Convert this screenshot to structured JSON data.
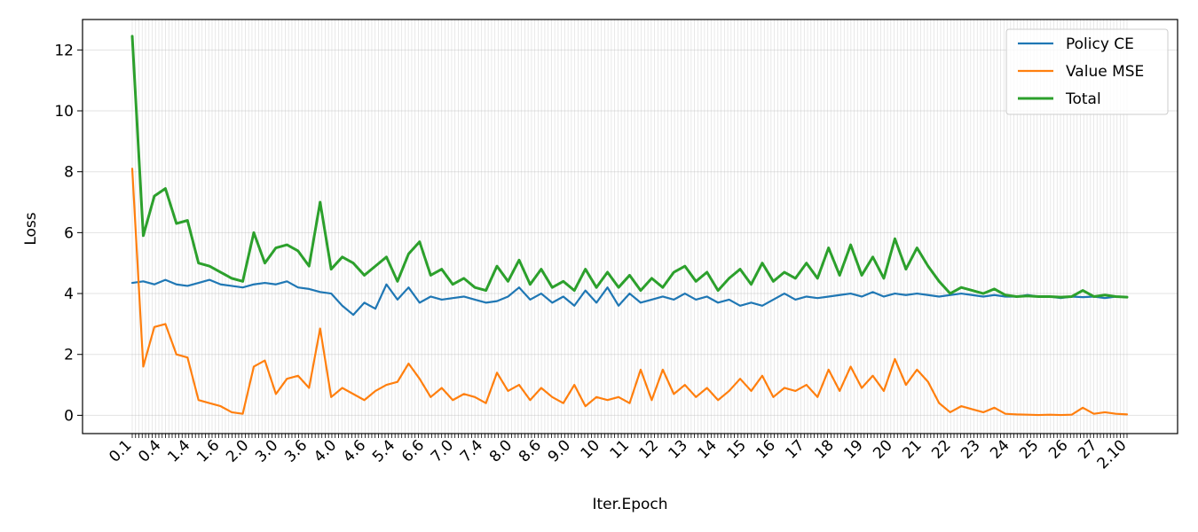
{
  "chart_data": {
    "type": "line",
    "title": "",
    "xlabel": "Iter.Epoch",
    "ylabel": "Loss",
    "ylim": [
      -0.6,
      13.0
    ],
    "yticks": [
      0,
      2,
      4,
      6,
      8,
      10,
      12
    ],
    "x_tick_labels": [
      "0.1",
      "0.4",
      "1.4",
      "1.6",
      "2.0",
      "3.0",
      "3.6",
      "4.0",
      "4.6",
      "5.4",
      "6.6",
      "7.0",
      "7.4",
      "8.0",
      "8.6",
      "9.0",
      "10",
      "11",
      "12",
      "13",
      "14",
      "15",
      "16",
      "17",
      "18",
      "19",
      "20",
      "21",
      "22",
      "23",
      "24",
      "25",
      "26",
      "27",
      "2.10"
    ],
    "grid": true,
    "legend_position": "top-right",
    "series": [
      {
        "name": "Policy CE",
        "color": "#1f77b4",
        "values": [
          4.35,
          4.4,
          4.3,
          4.45,
          4.3,
          4.25,
          4.35,
          4.45,
          4.3,
          4.25,
          4.2,
          4.3,
          4.35,
          4.3,
          4.4,
          4.2,
          4.15,
          4.05,
          4.0,
          3.6,
          3.3,
          3.7,
          3.5,
          4.3,
          3.8,
          4.2,
          3.7,
          3.9,
          3.8,
          3.85,
          3.9,
          3.8,
          3.7,
          3.75,
          3.9,
          4.2,
          3.8,
          4.0,
          3.7,
          3.9,
          3.6,
          4.1,
          3.7,
          4.2,
          3.6,
          4.0,
          3.7,
          3.8,
          3.9,
          3.8,
          4.0,
          3.8,
          3.9,
          3.7,
          3.8,
          3.6,
          3.7,
          3.6,
          3.8,
          4.0,
          3.8,
          3.9,
          3.85,
          3.9,
          3.95,
          4.0,
          3.9,
          4.05,
          3.9,
          4.0,
          3.95,
          4.0,
          3.95,
          3.9,
          3.95,
          4.0,
          3.95,
          3.9,
          3.95,
          3.9,
          3.9,
          3.95,
          3.9,
          3.9,
          3.85,
          3.9,
          3.88,
          3.9,
          3.85,
          3.9,
          3.88
        ]
      },
      {
        "name": "Value MSE",
        "color": "#ff7f0e",
        "values": [
          8.1,
          1.6,
          2.9,
          3.0,
          2.0,
          1.9,
          0.5,
          0.4,
          0.3,
          0.1,
          0.05,
          1.6,
          1.8,
          0.7,
          1.2,
          1.3,
          0.9,
          2.85,
          0.6,
          0.9,
          0.7,
          0.5,
          0.8,
          1.0,
          1.1,
          1.7,
          1.2,
          0.6,
          0.9,
          0.5,
          0.7,
          0.6,
          0.4,
          1.4,
          0.8,
          1.0,
          0.5,
          0.9,
          0.6,
          0.4,
          1.0,
          0.3,
          0.6,
          0.5,
          0.6,
          0.4,
          1.5,
          0.5,
          1.5,
          0.7,
          1.0,
          0.6,
          0.9,
          0.5,
          0.8,
          1.2,
          0.8,
          1.3,
          0.6,
          0.9,
          0.8,
          1.0,
          0.6,
          1.5,
          0.8,
          1.6,
          0.9,
          1.3,
          0.8,
          1.85,
          1.0,
          1.5,
          1.1,
          0.4,
          0.1,
          0.3,
          0.2,
          0.1,
          0.25,
          0.05,
          0.03,
          0.02,
          0.01,
          0.02,
          0.01,
          0.02,
          0.25,
          0.05,
          0.1,
          0.05,
          0.03
        ]
      },
      {
        "name": "Total",
        "color": "#2ca02c",
        "values": [
          12.45,
          5.9,
          7.2,
          7.45,
          6.3,
          6.4,
          5.0,
          4.9,
          4.7,
          4.5,
          4.4,
          6.0,
          5.0,
          5.5,
          5.6,
          5.4,
          4.9,
          7.0,
          4.8,
          5.2,
          5.0,
          4.6,
          4.9,
          5.2,
          4.4,
          5.3,
          5.7,
          4.6,
          4.8,
          4.3,
          4.5,
          4.2,
          4.1,
          4.9,
          4.4,
          5.1,
          4.3,
          4.8,
          4.2,
          4.4,
          4.1,
          4.8,
          4.2,
          4.7,
          4.2,
          4.6,
          4.1,
          4.5,
          4.2,
          4.7,
          4.9,
          4.4,
          4.7,
          4.1,
          4.5,
          4.8,
          4.3,
          5.0,
          4.4,
          4.7,
          4.5,
          5.0,
          4.5,
          5.5,
          4.6,
          5.6,
          4.6,
          5.2,
          4.5,
          5.8,
          4.8,
          5.5,
          4.9,
          4.4,
          4.0,
          4.2,
          4.1,
          4.0,
          4.15,
          3.95,
          3.9,
          3.92,
          3.9,
          3.9,
          3.88,
          3.9,
          4.1,
          3.9,
          3.95,
          3.9,
          3.88
        ]
      }
    ]
  }
}
